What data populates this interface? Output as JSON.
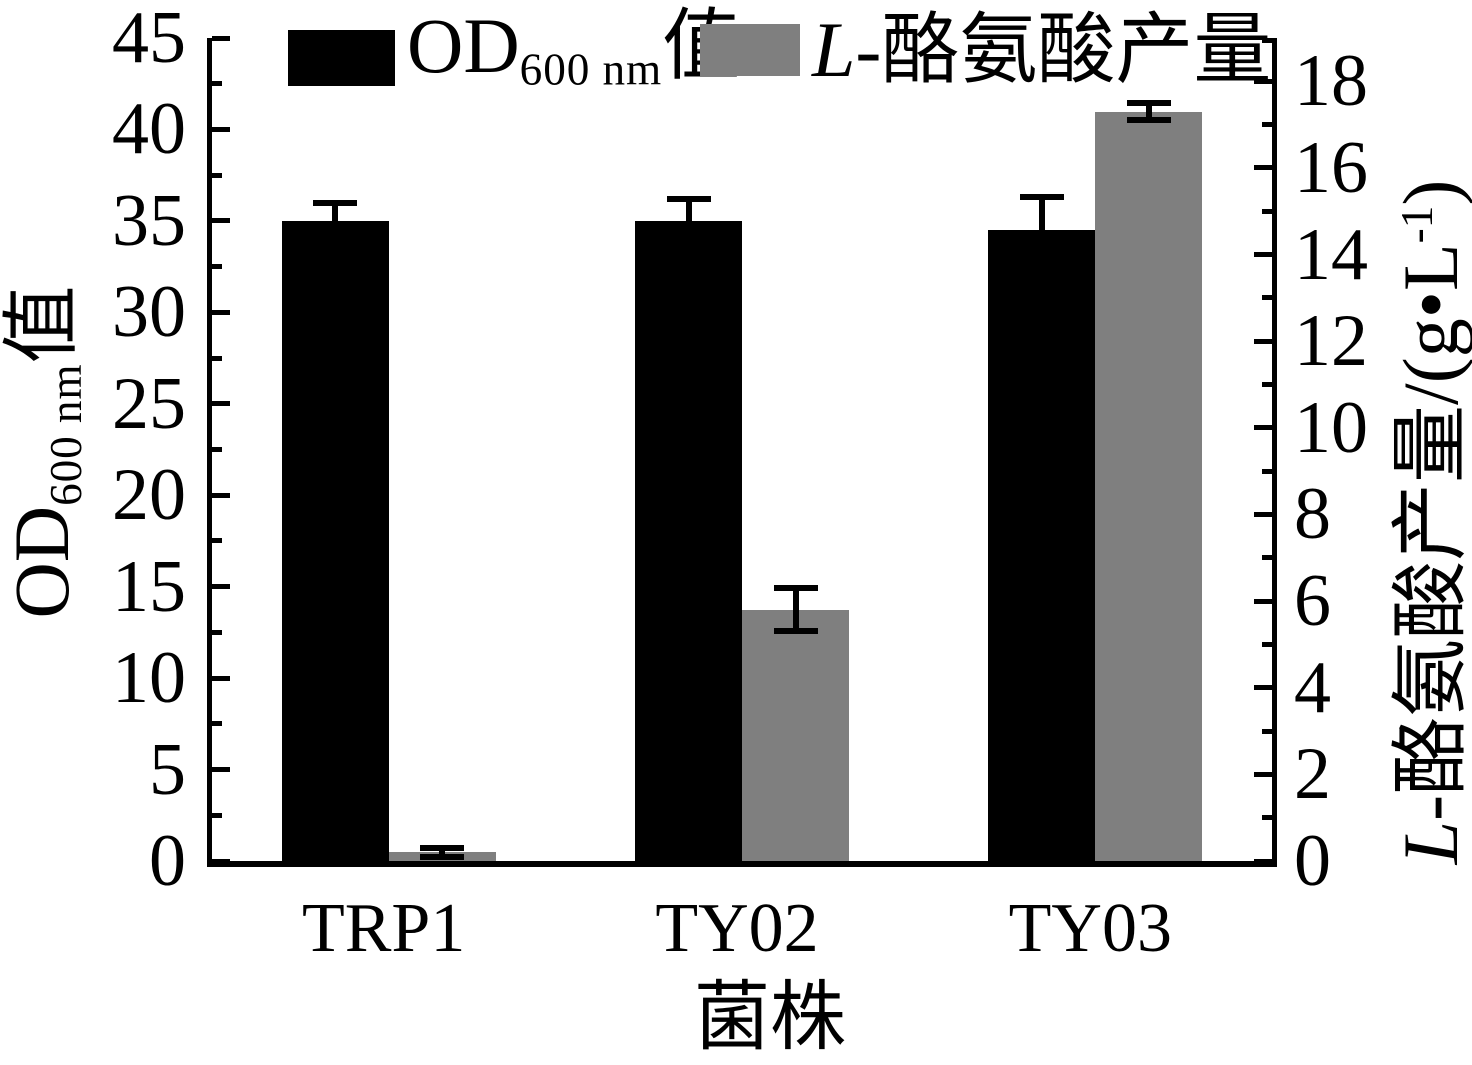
{
  "figure": {
    "background": "#ffffff",
    "bar_black": "#000000",
    "bar_gray": "#7f7f7f",
    "error_bar_color": "#000000"
  },
  "legend": {
    "position": "top",
    "items": [
      {
        "name": "od600-series",
        "swatch_color": "#000000",
        "text_main": "OD",
        "text_sub": "600 nm",
        "text_suffix": "值"
      },
      {
        "name": "tyrosine-series",
        "swatch_color": "#7f7f7f",
        "text_italic": "L",
        "text_main": "-酪氨酸产量"
      }
    ]
  },
  "axes": {
    "left": {
      "title_main": "OD",
      "title_sub": "600 nm",
      "title_suffix": "值",
      "tick_labels": [
        "0",
        "5",
        "10",
        "15",
        "20",
        "25",
        "30",
        "35",
        "40",
        "45"
      ]
    },
    "right": {
      "title_italic": "L",
      "title_main": "-酪氨酸产量/(g•L",
      "title_sup": "-1",
      "title_close": ")",
      "tick_labels": [
        "0",
        "2",
        "4",
        "6",
        "8",
        "10",
        "12",
        "14",
        "16",
        "18"
      ]
    },
    "x": {
      "title": "菌株",
      "categories": [
        "TRP1",
        "TY02",
        "TY03"
      ]
    }
  },
  "chart_data": {
    "type": "bar",
    "categories": [
      "TRP1",
      "TY02",
      "TY03"
    ],
    "series": [
      {
        "name": "OD600 nm值",
        "axis": "left",
        "color": "#000000",
        "values": [
          35.0,
          35.0,
          34.5
        ],
        "errors": [
          1.0,
          1.2,
          1.8
        ]
      },
      {
        "name": "L-酪氨酸产量",
        "axis": "right",
        "color": "#7f7f7f",
        "values": [
          0.2,
          5.8,
          17.3
        ],
        "errors": [
          0.1,
          0.5,
          0.2
        ]
      }
    ],
    "xlabel": "菌株",
    "ylabel_left": "OD600 nm值",
    "ylabel_right": "L-酪氨酸产量/(g•L-1)",
    "ylim_left": [
      0,
      45
    ],
    "ylim_right": [
      0,
      19
    ],
    "left_major_step": 5,
    "left_minor_step": 2.5,
    "right_major_step": 2,
    "right_minor_step": 1,
    "right_max_labeled": 18,
    "grid": false,
    "legend_position": "top"
  }
}
